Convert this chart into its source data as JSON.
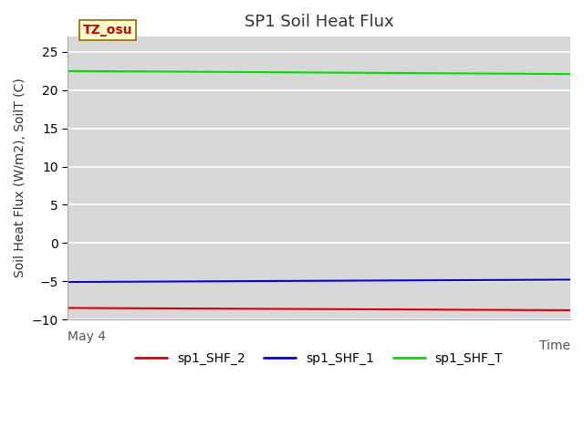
{
  "title": "SP1 Soil Heat Flux",
  "ylabel": "Soil Heat Flux (W/m2), SoilT (C)",
  "xlabel": "Time",
  "tz_label": "TZ_osu",
  "xlim": [
    0,
    1
  ],
  "ylim": [
    -10,
    27
  ],
  "yticks": [
    -10,
    -5,
    0,
    5,
    10,
    15,
    20,
    25
  ],
  "x_start_label": "May 4",
  "background_color": "#d8d8d8",
  "fig_background_color": "#ffffff",
  "lines": [
    {
      "label": "sp1_SHF_2",
      "color": "#dd0000",
      "x": [
        0.0,
        1.0
      ],
      "y": [
        -8.5,
        -8.8
      ]
    },
    {
      "label": "sp1_SHF_1",
      "color": "#0000dd",
      "x": [
        0.0,
        1.0
      ],
      "y": [
        -5.1,
        -4.8
      ]
    },
    {
      "label": "sp1_SHF_T",
      "color": "#00dd00",
      "x": [
        0.0,
        1.0
      ],
      "y": [
        22.5,
        22.1
      ]
    }
  ],
  "legend_labels": [
    "sp1_SHF_2",
    "sp1_SHF_1",
    "sp1_SHF_T"
  ],
  "legend_colors": [
    "#dd0000",
    "#0000dd",
    "#00dd00"
  ],
  "tz_box_facecolor": "#ffffcc",
  "tz_box_edgecolor": "#996600",
  "tz_text_color": "#cc0000",
  "title_fontsize": 13,
  "axis_fontsize": 10,
  "tick_fontsize": 10,
  "legend_fontsize": 10,
  "linewidth": 1.5
}
